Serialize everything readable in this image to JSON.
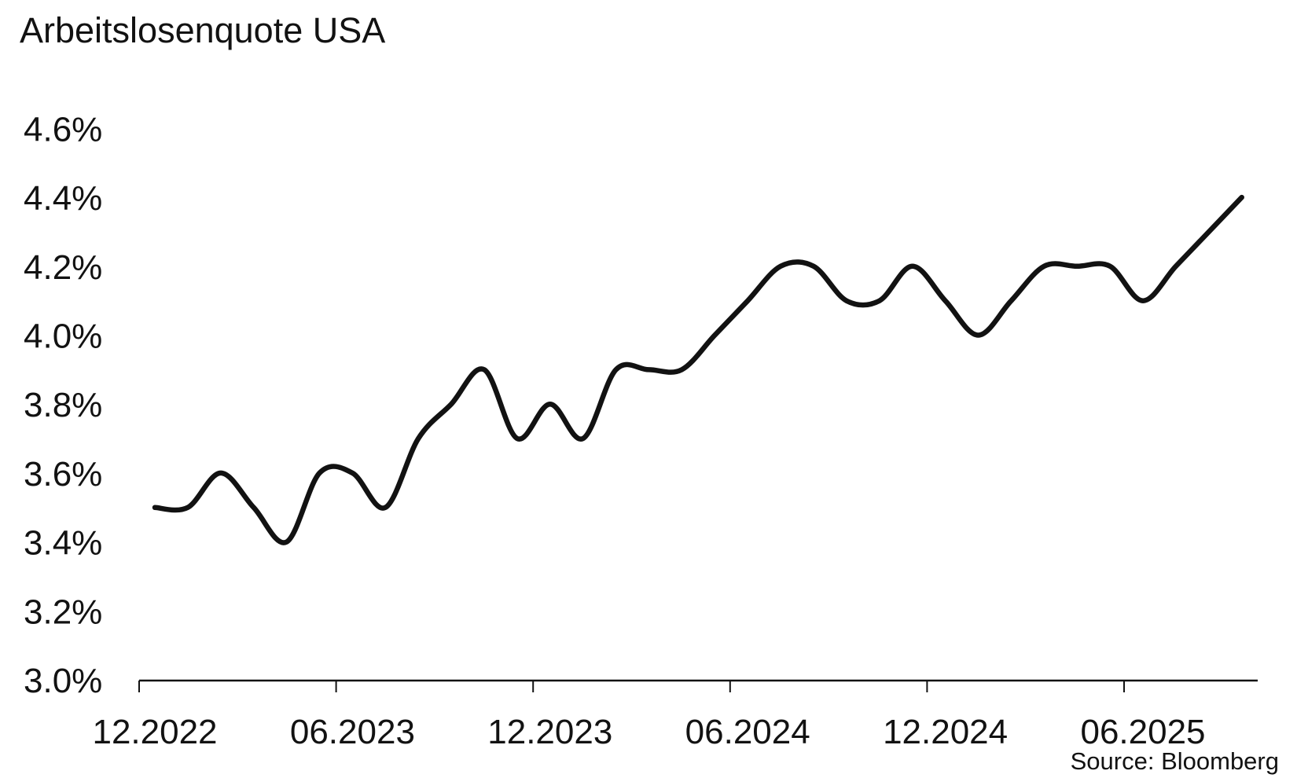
{
  "title": "Arbeitslosenquote USA",
  "source": "Source: Bloomberg",
  "chart_data": {
    "type": "line",
    "title": "Arbeitslosenquote USA",
    "source": "Source: Bloomberg",
    "unit": "%",
    "grid": false,
    "legend": false,
    "line_color": "#121212",
    "background_color": "#ffffff",
    "ylim": [
      3.0,
      4.6
    ],
    "y_step": 0.2,
    "y_tick_labels": [
      "3.0%",
      "3.2%",
      "3.4%",
      "3.6%",
      "3.8%",
      "4.0%",
      "4.2%",
      "4.4%",
      "4.6%"
    ],
    "x_tick_labels": [
      "12.2022",
      "06.2023",
      "12.2023",
      "06.2024",
      "12.2024",
      "06.2025"
    ],
    "x": [
      "12.2022",
      "01.2023",
      "02.2023",
      "03.2023",
      "04.2023",
      "05.2023",
      "06.2023",
      "07.2023",
      "08.2023",
      "09.2023",
      "10.2023",
      "11.2023",
      "12.2023",
      "01.2024",
      "02.2024",
      "03.2024",
      "04.2024",
      "05.2024",
      "06.2024",
      "07.2024",
      "08.2024",
      "09.2024",
      "10.2024",
      "11.2024",
      "12.2024",
      "01.2025",
      "02.2025",
      "03.2025",
      "04.2025",
      "05.2025",
      "06.2025",
      "07.2025",
      "08.2025",
      "09.2025"
    ],
    "values": [
      3.5,
      3.5,
      3.6,
      3.5,
      3.4,
      3.6,
      3.6,
      3.5,
      3.7,
      3.8,
      3.9,
      3.7,
      3.8,
      3.7,
      3.9,
      3.9,
      3.9,
      4.0,
      4.1,
      4.2,
      4.2,
      4.1,
      4.1,
      4.2,
      4.1,
      4.0,
      4.1,
      4.2,
      4.2,
      4.2,
      4.1,
      4.2,
      4.3,
      4.4
    ]
  }
}
